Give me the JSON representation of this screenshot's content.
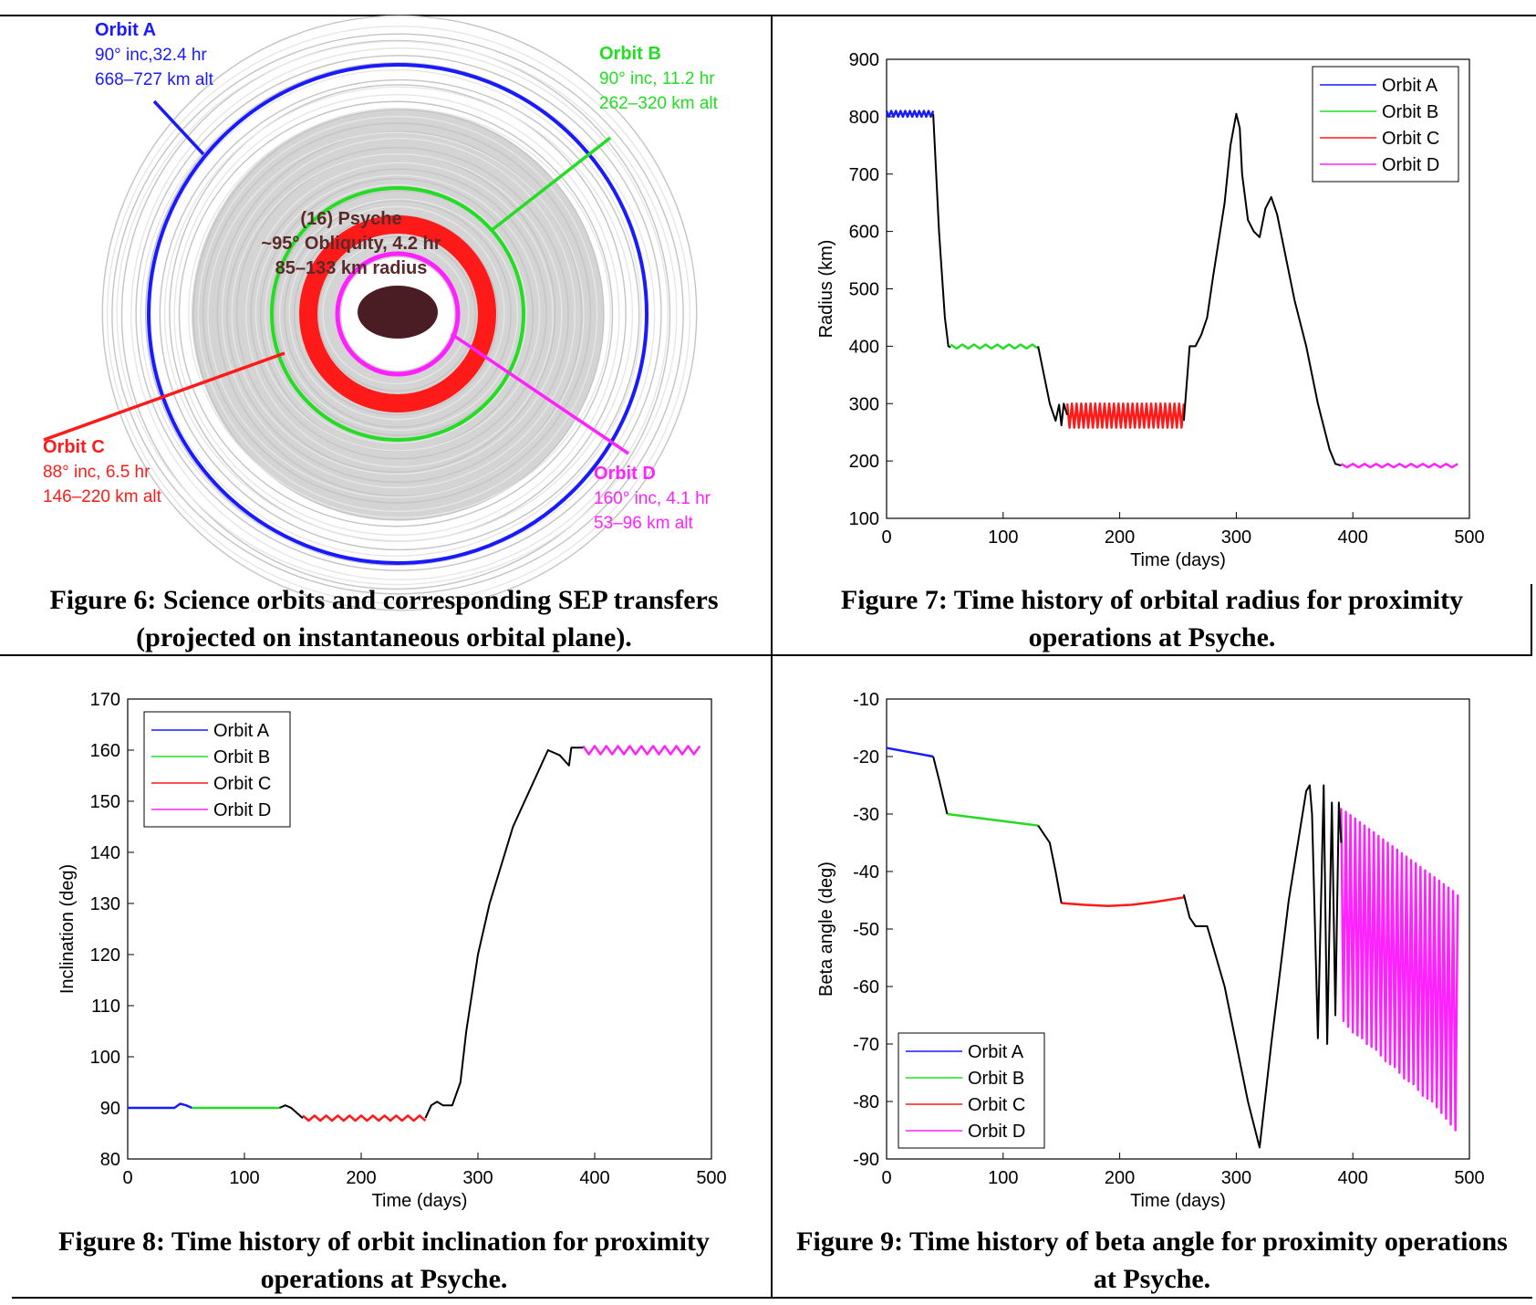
{
  "figure6": {
    "orbits": [
      {
        "name": "Orbit A",
        "color": "#1a1aff",
        "lines": [
          "90° inc,32.4 hr",
          "668–727 km alt"
        ]
      },
      {
        "name": "Orbit B",
        "color": "#22dd22",
        "lines": [
          "90° inc, 11.2 hr",
          "262–320 km alt"
        ]
      },
      {
        "name": "Orbit C",
        "color": "#ff1a1a",
        "lines": [
          "88° inc, 6.5 hr",
          "146–220 km alt"
        ]
      },
      {
        "name": "Orbit D",
        "color": "#ff22ff",
        "lines": [
          "160° inc, 4.1 hr",
          "53–96 km alt"
        ]
      }
    ],
    "body": [
      "(16) Psyche",
      "~95° Obliquity, 4.2 hr",
      "85–133 km radius"
    ]
  },
  "captions": [
    "Figure 6: Science orbits and corresponding SEP transfers (projected on instantaneous orbital plane).",
    "Figure 7: Time history of orbital radius for proximity operations at Psyche.",
    "Figure 8: Time history of orbit inclination for proximity operations at Psyche.",
    "Figure 9: Time history of beta angle for proximity operations at Psyche."
  ],
  "chart_data": [
    {
      "type": "line",
      "x_label": "Time (days)",
      "y_label": "Radius (km)",
      "xlim": [
        0,
        500
      ],
      "xticks": [
        0,
        100,
        200,
        300,
        400,
        500
      ],
      "ylim": [
        100,
        900
      ],
      "yticks": [
        100,
        200,
        300,
        400,
        500,
        600,
        700,
        800,
        900
      ],
      "legend": "upper right",
      "series": [
        {
          "name": "Orbit A",
          "color": "#1a1aff",
          "x": [
            0,
            2,
            4,
            6,
            8,
            10,
            12,
            14,
            16,
            18,
            20,
            22,
            24,
            26,
            28,
            30,
            32,
            34,
            36,
            38,
            40
          ],
          "values": [
            810,
            800,
            810,
            800,
            810,
            800,
            810,
            800,
            810,
            800,
            810,
            800,
            810,
            800,
            810,
            800,
            810,
            800,
            810,
            800,
            810
          ]
        },
        {
          "name": "Orbit B",
          "color": "#22dd22",
          "x": [
            55,
            60,
            65,
            70,
            75,
            80,
            85,
            90,
            95,
            100,
            105,
            110,
            115,
            120,
            125,
            130
          ],
          "values": [
            403,
            396,
            403,
            396,
            403,
            396,
            403,
            396,
            403,
            396,
            403,
            396,
            403,
            396,
            403,
            396
          ]
        },
        {
          "name": "Orbit C",
          "color": "#ff1a1a",
          "x": [
            155,
            157,
            159,
            161,
            163,
            165,
            167,
            169,
            171,
            173,
            175,
            177,
            179,
            181,
            183,
            185,
            187,
            189,
            191,
            193,
            195,
            197,
            199,
            201,
            203,
            205,
            207,
            209,
            211,
            213,
            215,
            217,
            219,
            221,
            223,
            225,
            227,
            229,
            231,
            233,
            235,
            237,
            239,
            241,
            243,
            245,
            247,
            249,
            251,
            253,
            255
          ],
          "values": [
            300,
            258,
            300,
            258,
            300,
            258,
            300,
            258,
            300,
            258,
            300,
            258,
            300,
            258,
            300,
            258,
            300,
            258,
            300,
            258,
            300,
            258,
            300,
            258,
            300,
            258,
            300,
            258,
            300,
            258,
            300,
            258,
            300,
            258,
            300,
            258,
            300,
            258,
            300,
            258,
            300,
            258,
            300,
            258,
            300,
            258,
            300,
            258,
            300,
            258,
            300
          ]
        },
        {
          "name": "Orbit D",
          "color": "#ff22ff",
          "x": [
            390,
            395,
            400,
            405,
            410,
            415,
            420,
            425,
            430,
            435,
            440,
            445,
            450,
            455,
            460,
            465,
            470,
            475,
            480,
            485,
            490
          ],
          "values": [
            195,
            189,
            195,
            189,
            195,
            189,
            195,
            189,
            195,
            189,
            195,
            189,
            195,
            189,
            195,
            189,
            195,
            189,
            195,
            189,
            195
          ]
        },
        {
          "color": "#000000",
          "x": [
            40,
            45,
            50,
            53,
            55
          ],
          "values": [
            805,
            600,
            450,
            400,
            398
          ]
        },
        {
          "color": "#000000",
          "x": [
            130,
            135,
            140,
            145,
            148,
            150,
            152,
            155
          ],
          "values": [
            400,
            350,
            300,
            270,
            298,
            262,
            300,
            280
          ]
        },
        {
          "color": "#000000",
          "x": [
            255,
            260,
            265,
            270,
            275,
            280,
            290,
            295,
            300,
            303,
            305,
            310,
            315,
            320,
            325,
            330,
            335,
            340,
            350,
            360,
            370,
            380,
            385,
            390
          ],
          "values": [
            270,
            400,
            400,
            420,
            450,
            520,
            650,
            750,
            805,
            780,
            700,
            620,
            600,
            590,
            640,
            660,
            630,
            580,
            480,
            400,
            300,
            220,
            195,
            192
          ]
        }
      ]
    },
    {
      "type": "line",
      "x_label": "Time (days)",
      "y_label": "Inclination (deg)",
      "xlim": [
        0,
        500
      ],
      "xticks": [
        0,
        100,
        200,
        300,
        400,
        500
      ],
      "ylim": [
        80,
        170
      ],
      "yticks": [
        80,
        90,
        100,
        110,
        120,
        130,
        140,
        150,
        160,
        170
      ],
      "legend": "upper left",
      "series": [
        {
          "name": "Orbit A",
          "color": "#1a1aff",
          "x": [
            0,
            40,
            45,
            50,
            55
          ],
          "values": [
            90,
            90,
            90.8,
            90.5,
            90
          ]
        },
        {
          "name": "Orbit B",
          "color": "#22dd22",
          "x": [
            55,
            130
          ],
          "values": [
            90,
            90
          ]
        },
        {
          "name": "Orbit C",
          "color": "#ff1a1a",
          "x": [
            150,
            155,
            160,
            165,
            170,
            175,
            180,
            185,
            190,
            195,
            200,
            205,
            210,
            215,
            220,
            225,
            230,
            235,
            240,
            245,
            250,
            255
          ],
          "values": [
            88.5,
            87.5,
            88.5,
            87.5,
            88.5,
            87.5,
            88.5,
            87.5,
            88.5,
            87.5,
            88.5,
            87.5,
            88.5,
            87.5,
            88.5,
            87.5,
            88.5,
            87.5,
            88.5,
            87.5,
            88.5,
            87.5
          ]
        },
        {
          "name": "Orbit D",
          "color": "#ff22ff",
          "x": [
            390,
            395,
            400,
            405,
            410,
            415,
            420,
            425,
            430,
            435,
            440,
            445,
            450,
            455,
            460,
            465,
            470,
            475,
            480,
            485,
            490
          ],
          "values": [
            160.8,
            159.2,
            160.8,
            159.2,
            160.8,
            159.2,
            160.8,
            159.2,
            160.8,
            159.2,
            160.8,
            159.2,
            160.8,
            159.2,
            160.8,
            159.2,
            160.8,
            159.2,
            160.8,
            159.2,
            160.8
          ]
        },
        {
          "color": "#000000",
          "x": [
            130,
            135,
            140,
            145,
            150
          ],
          "values": [
            90,
            90.5,
            90,
            89,
            88
          ]
        },
        {
          "color": "#000000",
          "x": [
            255,
            260,
            265,
            270,
            278,
            285,
            290,
            300,
            310,
            330,
            350,
            360,
            370,
            378,
            380,
            385,
            390
          ],
          "values": [
            88,
            90.5,
            91.2,
            90.5,
            90.5,
            95,
            105,
            120,
            130,
            145,
            155,
            160,
            159,
            157,
            160.5,
            160.5,
            160.5
          ]
        }
      ]
    },
    {
      "type": "line",
      "x_label": "Time (days)",
      "y_label": "Beta angle (deg)",
      "xlim": [
        0,
        500
      ],
      "xticks": [
        0,
        100,
        200,
        300,
        400,
        500
      ],
      "ylim": [
        -90,
        -10
      ],
      "yticks": [
        -90,
        -80,
        -70,
        -60,
        -50,
        -40,
        -30,
        -20,
        -10
      ],
      "legend": "lower left",
      "series": [
        {
          "name": "Orbit A",
          "color": "#1a1aff",
          "x": [
            0,
            40
          ],
          "values": [
            -18.5,
            -20
          ]
        },
        {
          "name": "Orbit B",
          "color": "#22dd22",
          "x": [
            52,
            130
          ],
          "values": [
            -30,
            -32
          ]
        },
        {
          "name": "Orbit C",
          "color": "#ff1a1a",
          "x": [
            150,
            170,
            190,
            210,
            230,
            255
          ],
          "values": [
            -45.5,
            -45.8,
            -46,
            -45.8,
            -45.3,
            -44.5
          ]
        },
        {
          "name": "Orbit D",
          "color": "#ff22ff",
          "x": [
            390,
            392,
            394,
            396,
            398,
            400,
            402,
            404,
            406,
            408,
            410,
            412,
            414,
            416,
            418,
            420,
            422,
            424,
            426,
            428,
            430,
            432,
            434,
            436,
            438,
            440,
            442,
            444,
            446,
            448,
            450,
            452,
            454,
            456,
            458,
            460,
            462,
            464,
            466,
            468,
            470,
            472,
            474,
            476,
            478,
            480,
            482,
            484,
            486,
            488,
            490
          ],
          "values": [
            -29,
            -66,
            -29.6,
            -67,
            -30.2,
            -68,
            -30.8,
            -68.5,
            -31.4,
            -69,
            -32,
            -70,
            -32.6,
            -70.5,
            -33.2,
            -71,
            -33.8,
            -72,
            -34.4,
            -73,
            -35,
            -73.5,
            -35.6,
            -74,
            -36.2,
            -75,
            -36.8,
            -76,
            -37.4,
            -76.5,
            -38,
            -77,
            -38.6,
            -78,
            -39.2,
            -79,
            -39.8,
            -79.5,
            -40.4,
            -80,
            -41,
            -81,
            -41.6,
            -82,
            -42.2,
            -83,
            -42.8,
            -84,
            -43.4,
            -85,
            -44
          ]
        },
        {
          "color": "#000000",
          "x": [
            40,
            45,
            52
          ],
          "values": [
            -20,
            -24,
            -30
          ]
        },
        {
          "color": "#000000",
          "x": [
            130,
            140,
            145,
            150
          ],
          "values": [
            -32,
            -35,
            -40,
            -45.5
          ]
        },
        {
          "color": "#000000",
          "x": [
            255,
            260,
            265,
            275,
            290,
            310,
            320,
            330,
            345,
            360,
            363,
            365,
            370,
            375,
            378,
            382,
            385,
            388,
            390
          ],
          "values": [
            -44,
            -48,
            -49.5,
            -49.5,
            -60,
            -80,
            -88,
            -70,
            -45,
            -26,
            -25,
            -30,
            -69,
            -25,
            -70,
            -28,
            -65,
            -28,
            -35
          ]
        }
      ]
    }
  ]
}
